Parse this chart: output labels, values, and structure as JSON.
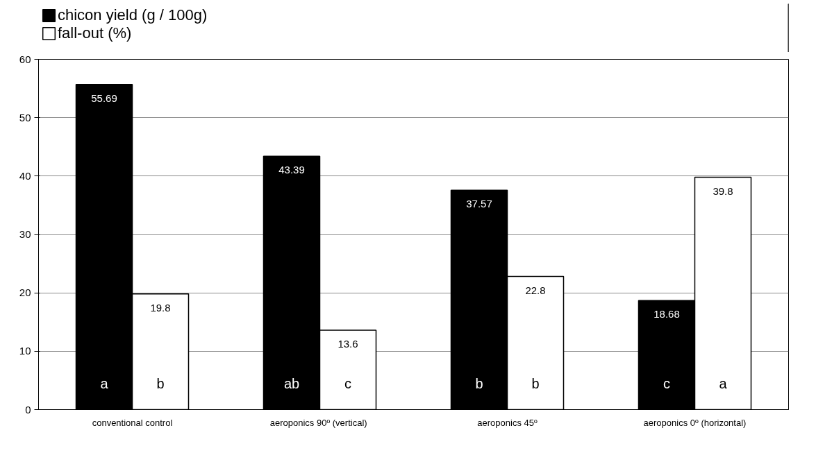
{
  "chart_data": {
    "type": "bar",
    "categories": [
      "conventional control",
      "aeroponics 90º  (vertical)",
      "aeroponics 45º",
      "aeroponics 0º (horizontal)"
    ],
    "series": [
      {
        "name": "chicon yield (g / 100g)",
        "color": "#000000",
        "values": [
          55.69,
          43.39,
          37.57,
          18.68
        ]
      },
      {
        "name": "fall-out (%)",
        "color": "#ffffff",
        "values": [
          19.8,
          13.6,
          22.8,
          39.8
        ]
      }
    ],
    "ylim": [
      0,
      60
    ],
    "yticks": [
      0,
      10,
      20,
      30,
      40,
      50,
      60
    ],
    "grid": "y",
    "legend": "top left",
    "data_labels": true,
    "annotations": [
      "a",
      "b",
      "ab",
      "c",
      "b",
      "b",
      "c",
      "a"
    ]
  }
}
